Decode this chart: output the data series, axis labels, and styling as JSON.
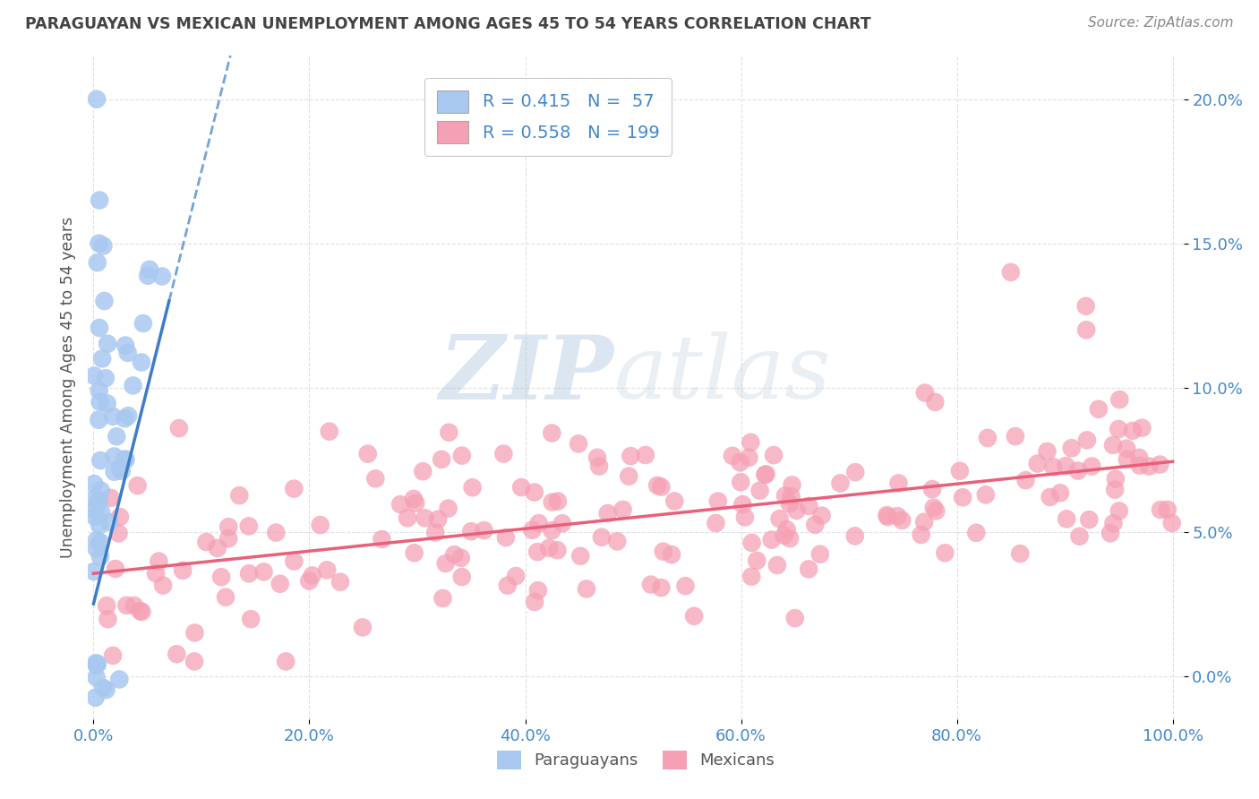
{
  "title": "PARAGUAYAN VS MEXICAN UNEMPLOYMENT AMONG AGES 45 TO 54 YEARS CORRELATION CHART",
  "source": "Source: ZipAtlas.com",
  "ylabel": "Unemployment Among Ages 45 to 54 years",
  "paraguayan_R": 0.415,
  "paraguayan_N": 57,
  "mexican_R": 0.558,
  "mexican_N": 199,
  "paraguayan_color": "#a8c8f0",
  "mexican_color": "#f5a0b5",
  "paraguayan_line_color": "#3d7cc9",
  "mexican_line_color": "#e8607a",
  "background_color": "#ffffff",
  "grid_color": "#cccccc",
  "title_color": "#444444",
  "source_color": "#888888",
  "tick_color": "#4488cc",
  "watermark_zip_color": "#9ab8d8",
  "watermark_atlas_color": "#c8dce8"
}
